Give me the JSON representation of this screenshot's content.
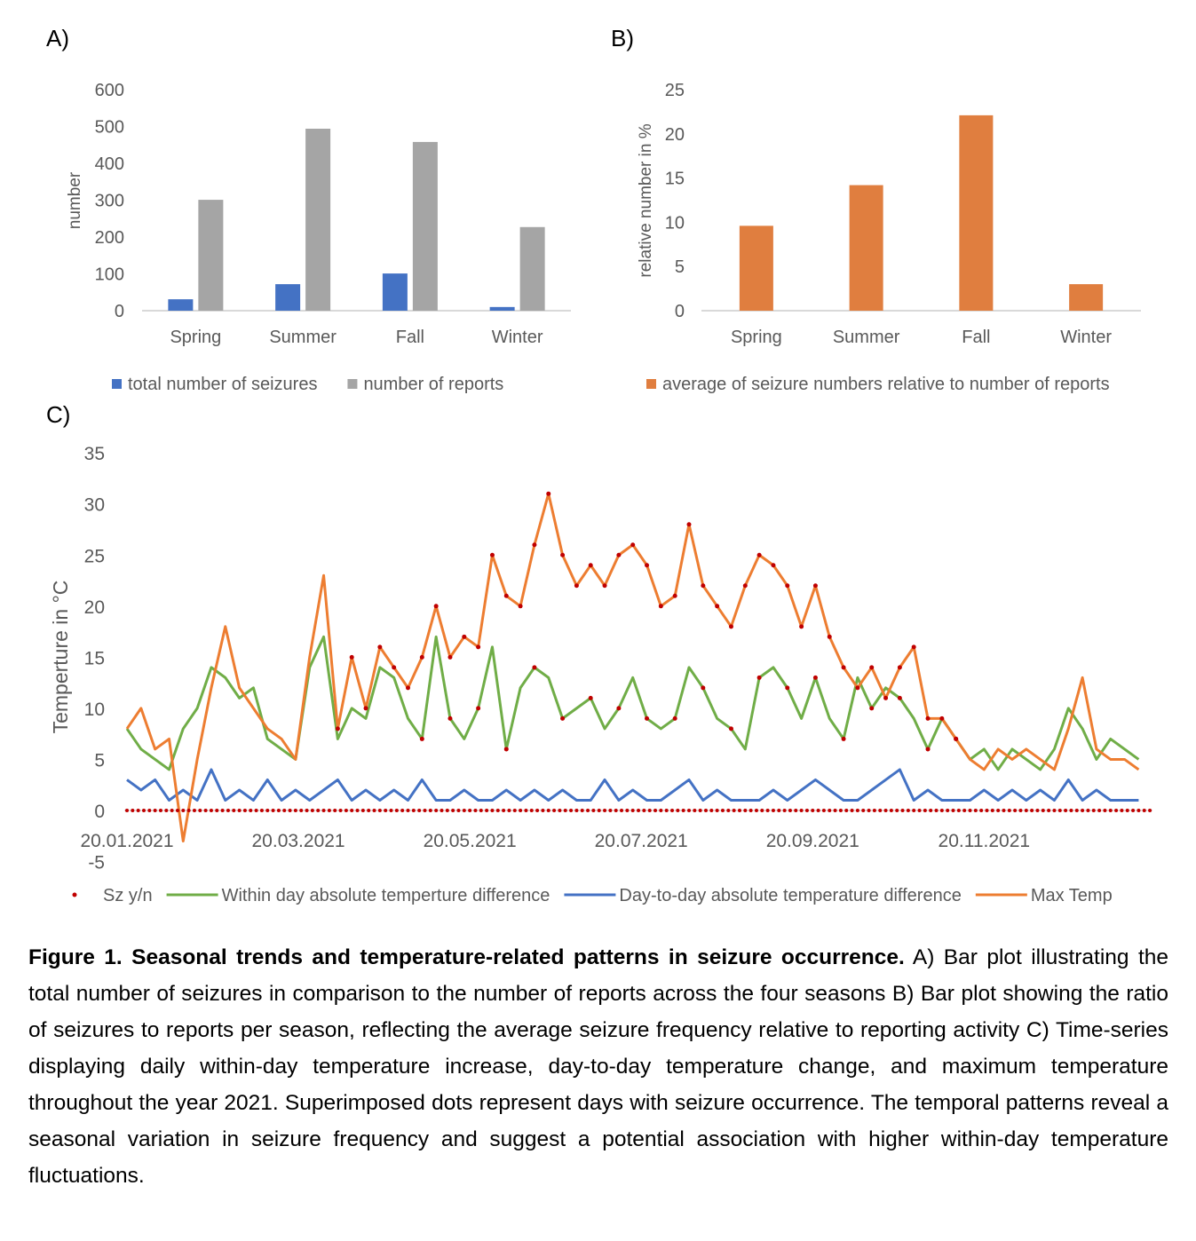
{
  "chart_data": [
    {
      "panel": "A)",
      "type": "bar",
      "categories": [
        "Spring",
        "Summer",
        "Fall",
        "Winter"
      ],
      "series": [
        {
          "name": "total number of seizures",
          "color": "#4472C4",
          "values": [
            31,
            72,
            101,
            10
          ]
        },
        {
          "name": "number of reports",
          "color": "#A5A5A5",
          "values": [
            301,
            494,
            458,
            227
          ]
        }
      ],
      "ylabel": "number",
      "ylim": [
        0,
        600
      ],
      "yticks": [
        "0",
        "100",
        "200",
        "300",
        "400",
        "500",
        "600"
      ],
      "legend": "bottom",
      "grid": false
    },
    {
      "panel": "B)",
      "type": "bar",
      "categories": [
        "Spring",
        "Summer",
        "Fall",
        "Winter"
      ],
      "series": [
        {
          "name": "average of seizure numbers relative to number of reports",
          "color": "#E07E3F",
          "values": [
            9.6,
            14.2,
            22.1,
            3.0
          ]
        }
      ],
      "ylabel": "relative number in %",
      "ylim": [
        0,
        25
      ],
      "yticks": [
        "0",
        "5",
        "10",
        "15",
        "20",
        "25"
      ],
      "legend": "bottom",
      "grid": false
    },
    {
      "panel": "C)",
      "type": "line",
      "ylabel": "Temperture in °C",
      "ylim": [
        -5,
        35
      ],
      "yticks": [
        "-5",
        "0",
        "5",
        "10",
        "15",
        "20",
        "25",
        "30",
        "35"
      ],
      "xticks": [
        "20.01.2021",
        "20.03.2021",
        "20.05.2021",
        "20.07.2021",
        "20.09.2021",
        "20.11.2021"
      ],
      "x_step_days": 5,
      "legend": "bottom",
      "series": [
        {
          "name": "Sz y/n",
          "color": "#C00000",
          "kind": "dots"
        },
        {
          "name": "Within day absolute temperture difference",
          "color": "#70AD47",
          "values": [
            8,
            6,
            5,
            4,
            8,
            10,
            14,
            13,
            11,
            12,
            7,
            6,
            5,
            14,
            17,
            7,
            10,
            9,
            14,
            13,
            9,
            7,
            17,
            9,
            7,
            10,
            16,
            6,
            12,
            14,
            13,
            9,
            10,
            11,
            8,
            10,
            13,
            9,
            8,
            9,
            14,
            12,
            9,
            8,
            6,
            13,
            14,
            12,
            9,
            13,
            9,
            7,
            13,
            10,
            12,
            11,
            9,
            6,
            9,
            7,
            5,
            6,
            4,
            6,
            5,
            4,
            6,
            10,
            8,
            5,
            7,
            6,
            5
          ]
        },
        {
          "name": "Day-to-day absolute temperature difference",
          "color": "#4472C4",
          "values": [
            3,
            2,
            3,
            1,
            2,
            1,
            4,
            1,
            2,
            1,
            3,
            1,
            2,
            1,
            2,
            3,
            1,
            2,
            1,
            2,
            1,
            3,
            1,
            1,
            2,
            1,
            1,
            2,
            1,
            2,
            1,
            2,
            1,
            1,
            3,
            1,
            2,
            1,
            1,
            2,
            3,
            1,
            2,
            1,
            1,
            1,
            2,
            1,
            2,
            3,
            2,
            1,
            1,
            2,
            3,
            4,
            1,
            2,
            1,
            1,
            1,
            2,
            1,
            2,
            1,
            2,
            1,
            3,
            1,
            2,
            1,
            1,
            1
          ]
        },
        {
          "name": "Max Temp",
          "color": "#ED7D31",
          "values": [
            8,
            10,
            6,
            7,
            -3,
            5,
            12,
            18,
            12,
            10,
            8,
            7,
            5,
            15,
            23,
            8,
            15,
            10,
            16,
            14,
            12,
            15,
            20,
            15,
            17,
            16,
            25,
            21,
            20,
            26,
            31,
            25,
            22,
            24,
            22,
            25,
            26,
            24,
            20,
            21,
            28,
            22,
            20,
            18,
            22,
            25,
            24,
            22,
            18,
            22,
            17,
            14,
            12,
            14,
            11,
            14,
            16,
            9,
            9,
            7,
            5,
            4,
            6,
            5,
            6,
            5,
            4,
            8,
            13,
            6,
            5,
            5,
            4
          ]
        }
      ]
    }
  ],
  "caption": {
    "label": "Figure 1. Seasonal trends and temperature-related patterns in seizure occurrence.",
    "text": " A) Bar plot illustrating the total number of seizures in comparison to the number of reports across the four seasons B) Bar plot showing the ratio of seizures to reports per season, reflecting the average seizure frequency relative to reporting activity C) Time-series displaying daily within-day temperature increase, day-to-day temperature change, and maximum temperature throughout the year 2021. Superimposed dots represent days with seizure occurrence. The temporal patterns reveal a seasonal variation in seizure frequency and suggest a potential association with higher within-day temperature fluctuations."
  }
}
